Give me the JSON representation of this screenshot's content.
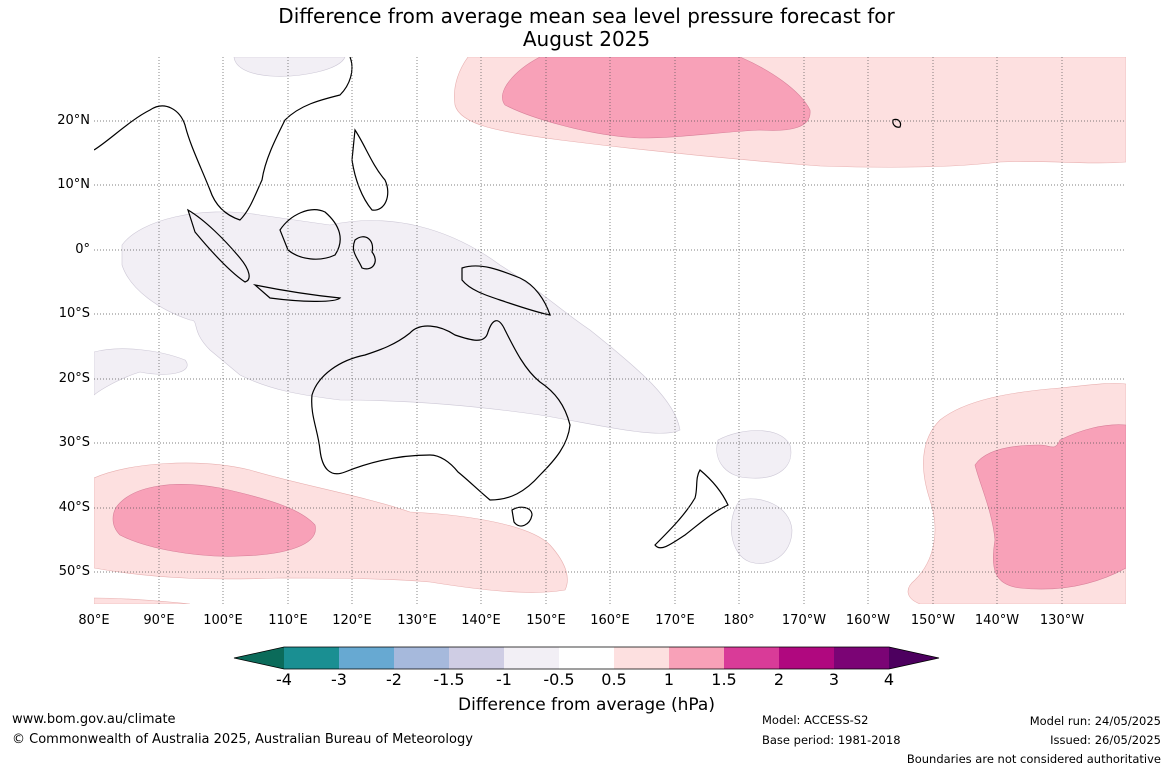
{
  "title": {
    "line1": "Difference from average mean sea level pressure forecast for",
    "line2": "August 2025"
  },
  "map": {
    "latitudes": [
      "20°N",
      "10°N",
      "0°",
      "10°S",
      "20°S",
      "30°S",
      "40°S",
      "50°S"
    ],
    "longitudes": [
      "80°E",
      "90°E",
      "100°E",
      "110°E",
      "120°E",
      "130°E",
      "140°E",
      "150°E",
      "160°E",
      "170°E",
      "180°",
      "170°W",
      "160°W",
      "150°W",
      "140°W",
      "130°W"
    ],
    "anomaly_regions": [
      {
        "area": "North Pacific band",
        "level": "0.5 to 1"
      },
      {
        "area": "North Pacific core",
        "level": "1 to 1.5"
      },
      {
        "area": "Southern Indian Ocean band",
        "level": "0.5 to 1"
      },
      {
        "area": "Southern Indian Ocean core",
        "level": "1 to 1.5"
      },
      {
        "area": "South-east Pacific band",
        "level": "0.5 to 1"
      },
      {
        "area": "South-east Pacific core",
        "level": "1 to 1.5"
      },
      {
        "area": "Maritime Continent / northern Australia",
        "level": "-1 to -0.5"
      }
    ]
  },
  "colorbar": {
    "ticks": [
      "-4",
      "-3",
      "-2",
      "-1.5",
      "-1",
      "-0.5",
      "0.5",
      "1",
      "1.5",
      "2",
      "3",
      "4"
    ],
    "colors": [
      "#0b6b5a",
      "#1a8f92",
      "#67a9d2",
      "#a6b9dc",
      "#cfcde4",
      "#f2eff5",
      "#ffffff",
      "#fde0e0",
      "#f8a1b8",
      "#d93b98",
      "#b0087f",
      "#7b0475",
      "#4d005f"
    ],
    "label": "Difference from average (hPa)"
  },
  "footer": {
    "website": "www.bom.gov.au/climate",
    "copyright": "© Commonwealth of Australia 2025, Australian Bureau of Meteorology",
    "model": "Model: ACCESS-S2",
    "base_period": "Base period: 1981-2018",
    "model_run": "Model run: 24/05/2025",
    "issued": "Issued: 26/05/2025",
    "disclaimer": "Boundaries are not considered authoritative"
  }
}
